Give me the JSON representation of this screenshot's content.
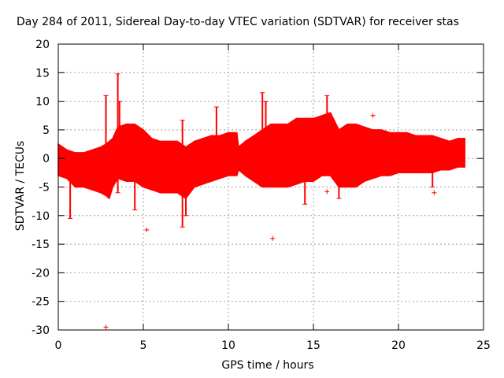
{
  "chart_data": {
    "type": "scatter",
    "title": "Day 284 of 2011, Sidereal Day-to-day VTEC variation (SDTVAR) for receiver stas",
    "xlabel": "GPS time / hours",
    "ylabel": "SDTVAR / TECUs",
    "xlim": [
      0,
      25
    ],
    "ylim": [
      -30,
      20
    ],
    "xticks": [
      "0",
      "5",
      "10",
      "15",
      "20",
      "25"
    ],
    "yticks": [
      "20",
      "15",
      "10",
      "5",
      "0",
      "-5",
      "-10",
      "-15",
      "-20",
      "-25",
      "-30"
    ],
    "grid": true,
    "series_color": "#ff0000",
    "envelope": {
      "x": [
        0,
        0.5,
        1,
        1.5,
        2,
        2.5,
        2.8,
        3,
        3.2,
        3.5,
        4,
        4.5,
        5,
        5.5,
        6,
        6.5,
        7,
        7.5,
        8,
        8.5,
        9,
        9.5,
        10,
        10.5,
        10.6,
        11,
        11.5,
        12,
        12.5,
        13,
        13.5,
        14,
        14.5,
        15,
        15.5,
        16,
        16.5,
        17,
        17.5,
        18,
        18.5,
        19,
        19.5,
        20,
        20.5,
        21,
        21.5,
        22,
        22.5,
        23,
        23.5,
        23.9
      ],
      "upper": [
        2.5,
        1.5,
        1,
        1,
        1.5,
        2,
        2.5,
        3,
        3.5,
        5.5,
        6,
        6,
        5,
        3.5,
        3,
        3,
        3,
        2,
        3,
        3.5,
        4,
        4,
        4.5,
        4.5,
        2,
        3,
        4,
        5,
        6,
        6,
        6,
        7,
        7,
        7,
        7.5,
        8,
        5,
        6,
        6,
        5.5,
        5,
        5,
        4.5,
        4.5,
        4.5,
        4,
        4,
        4,
        3.5,
        3,
        3.5,
        3.5
      ],
      "lower": [
        -3,
        -3.5,
        -5,
        -5,
        -5.5,
        -6,
        -6.5,
        -7,
        -5,
        -3.5,
        -4,
        -4,
        -5,
        -5.5,
        -6,
        -6,
        -6,
        -7,
        -5,
        -4.5,
        -4,
        -3.5,
        -3,
        -3,
        -2,
        -3,
        -4,
        -5,
        -5,
        -5,
        -5,
        -4.5,
        -4,
        -4,
        -3,
        -3,
        -5,
        -5,
        -5,
        -4,
        -3.5,
        -3,
        -3,
        -2.5,
        -2.5,
        -2.5,
        -2.5,
        -2.5,
        -2,
        -2,
        -1.5,
        -1.5
      ]
    },
    "spikes": [
      {
        "x": 0.7,
        "y1": -10.5,
        "y2": 1
      },
      {
        "x": 2.8,
        "y1": -3,
        "y2": 11
      },
      {
        "x": 3.5,
        "y1": -6,
        "y2": 14.8
      },
      {
        "x": 3.6,
        "y1": 3,
        "y2": 10
      },
      {
        "x": 4.5,
        "y1": -9,
        "y2": -4
      },
      {
        "x": 7.3,
        "y1": -12,
        "y2": 6.7
      },
      {
        "x": 7.5,
        "y1": -10,
        "y2": -4
      },
      {
        "x": 9.3,
        "y1": 3,
        "y2": 9
      },
      {
        "x": 12.0,
        "y1": 3,
        "y2": 11.5
      },
      {
        "x": 12.2,
        "y1": 4,
        "y2": 10
      },
      {
        "x": 14.5,
        "y1": -8,
        "y2": -3
      },
      {
        "x": 15.8,
        "y1": 5,
        "y2": 11
      },
      {
        "x": 16.5,
        "y1": -7,
        "y2": -3
      },
      {
        "x": 22.0,
        "y1": -5,
        "y2": -2
      }
    ],
    "outliers": [
      {
        "x": 2.8,
        "y": -29.5
      },
      {
        "x": 5.2,
        "y": -12.5
      },
      {
        "x": 12.6,
        "y": -14
      },
      {
        "x": 15.8,
        "y": -5.8
      },
      {
        "x": 18.5,
        "y": 7.5
      },
      {
        "x": 22.1,
        "y": -6
      }
    ]
  }
}
